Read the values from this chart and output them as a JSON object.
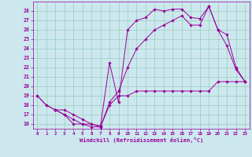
{
  "xlabel": "Windchill (Refroidissement éolien,°C)",
  "bg_color": "#cce8ee",
  "line_color": "#990099",
  "grid_color": "#99ccbb",
  "xlim": [
    -0.5,
    23.5
  ],
  "ylim": [
    15.5,
    29.0
  ],
  "xticks": [
    0,
    1,
    2,
    3,
    4,
    5,
    6,
    7,
    8,
    9,
    10,
    11,
    12,
    13,
    14,
    15,
    16,
    17,
    18,
    19,
    20,
    21,
    22,
    23
  ],
  "yticks": [
    16,
    17,
    18,
    19,
    20,
    21,
    22,
    23,
    24,
    25,
    26,
    27,
    28
  ],
  "line1_x": [
    0,
    1,
    2,
    3,
    4,
    5,
    6,
    7,
    8,
    9,
    10,
    11,
    12,
    13,
    14,
    15,
    16,
    17,
    18,
    19,
    20,
    21,
    22,
    23
  ],
  "line1_y": [
    19,
    18,
    17.5,
    17,
    16,
    16,
    15.7,
    15.7,
    18,
    19,
    19,
    19.5,
    19.5,
    19.5,
    19.5,
    19.5,
    19.5,
    19.5,
    19.5,
    19.5,
    20.5,
    20.5,
    20.5,
    20.5
  ],
  "line2_x": [
    0,
    1,
    2,
    3,
    4,
    5,
    6,
    7,
    8,
    9,
    10,
    11,
    12,
    13,
    14,
    15,
    16,
    17,
    18,
    19,
    20,
    21,
    22,
    23
  ],
  "line2_y": [
    19,
    18,
    17.5,
    17.5,
    17,
    16.5,
    16,
    15.8,
    22.5,
    18.3,
    26,
    27,
    27.3,
    28.2,
    28,
    28.2,
    28.2,
    27.3,
    27.2,
    28.5,
    26,
    24.3,
    21.8,
    20.5
  ],
  "line3_x": [
    2,
    3,
    4,
    5,
    6,
    7,
    8,
    9,
    10,
    11,
    12,
    13,
    14,
    15,
    16,
    17,
    18,
    19,
    20,
    21,
    22,
    23
  ],
  "line3_y": [
    17.5,
    17,
    16.5,
    16,
    16,
    15.7,
    18.3,
    19.5,
    22,
    24,
    25,
    26,
    26.5,
    27,
    27.5,
    26.5,
    26.5,
    28.5,
    26,
    25.5,
    22,
    20.5
  ],
  "figwidth": 3.2,
  "figheight": 2.0,
  "dpi": 100
}
